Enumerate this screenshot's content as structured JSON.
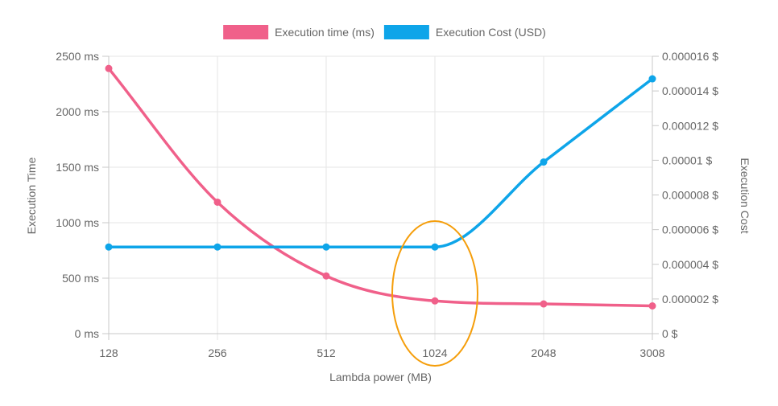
{
  "chart_data": {
    "type": "line",
    "categories": [
      "128",
      "256",
      "512",
      "1024",
      "2048",
      "3008"
    ],
    "series": [
      {
        "name": "Execution time (ms)",
        "axis": "left",
        "color": "#f0608a",
        "values": [
          2390,
          1185,
          520,
          295,
          268,
          250
        ]
      },
      {
        "name": "Execution Cost (USD)",
        "axis": "right",
        "color": "#0ea5e9",
        "values": [
          5e-06,
          5e-06,
          5e-06,
          5e-06,
          9.9e-06,
          1.47e-05
        ]
      }
    ],
    "xlabel": "Lambda power (MB)",
    "ylabel_left": "Execution Time",
    "ylabel_right": "Execution Cost",
    "ylim_left": [
      0,
      2500
    ],
    "ylim_right": [
      0,
      1.6e-05
    ],
    "y_ticks_left": [
      "0 ms",
      "500 ms",
      "1000 ms",
      "1500 ms",
      "2000 ms",
      "2500 ms"
    ],
    "y_ticks_right": [
      "0 $",
      "0.000002 $",
      "0.000004 $",
      "0.000006 $",
      "0.000008 $",
      "0.00001 $",
      "0.000012 $",
      "0.000014 $",
      "0.000016 $"
    ],
    "grid": true,
    "legend_position": "top",
    "annotation": {
      "shape": "ellipse",
      "category": "1024",
      "color": "#f59e0b"
    }
  }
}
